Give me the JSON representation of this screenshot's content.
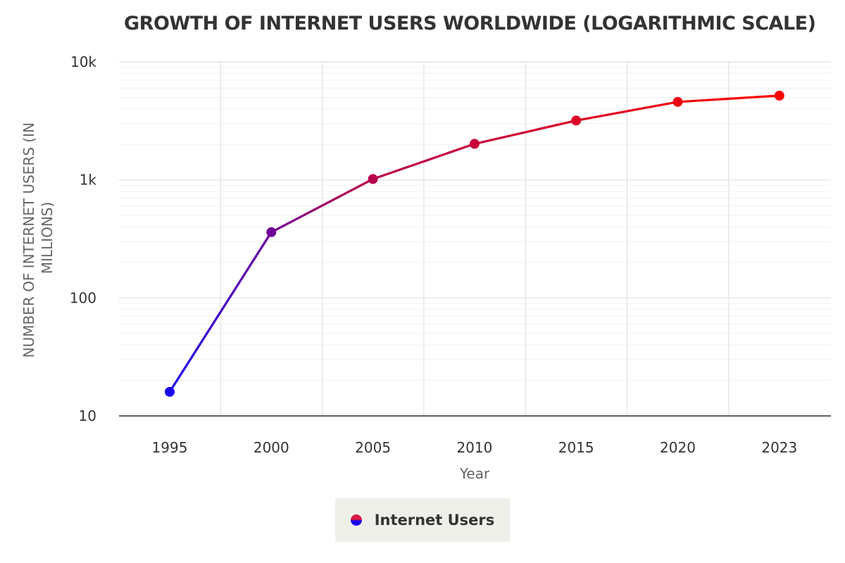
{
  "chart_data": {
    "type": "line",
    "title": "GROWTH OF INTERNET USERS WORLDWIDE (LOGARITHMIC SCALE)",
    "xlabel": "Year",
    "ylabel": "NUMBER OF INTERNET USERS (IN MILLIONS)",
    "yscale": "log",
    "ylim": [
      10,
      10000
    ],
    "yticks": [
      10,
      100,
      1000,
      10000
    ],
    "ytick_labels": [
      "10",
      "100",
      "1k",
      "10k"
    ],
    "categories": [
      "1995",
      "2000",
      "2005",
      "2010",
      "2015",
      "2020",
      "2023"
    ],
    "series": [
      {
        "name": "Internet Users",
        "values": [
          16,
          361,
          1018,
          2023,
          3185,
          4585,
          5180
        ]
      }
    ],
    "grid": true,
    "legend_position": "bottom-center",
    "colors": {
      "start": "#1a00f0",
      "end": "#ff0000",
      "axis": "#333333"
    }
  }
}
